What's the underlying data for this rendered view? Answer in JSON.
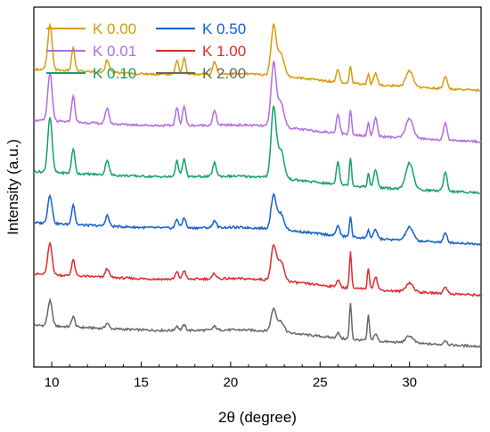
{
  "chart_data": {
    "type": "line",
    "title": "",
    "xlabel": "2θ (degree)",
    "ylabel": "Intensity (a.u.)",
    "xlim": [
      9,
      34
    ],
    "xticks": [
      "10",
      "15",
      "20",
      "25",
      "30"
    ],
    "y_ticks_labeled": false,
    "grid": false,
    "legend": {
      "placement": "top-left",
      "columns": 2,
      "entries": [
        "K 0.00",
        "K 0.50",
        "K 0.01",
        "K 1.00",
        "K 0.10",
        "K 2.00"
      ]
    },
    "peak_positions_2theta": [
      9.9,
      11.2,
      13.1,
      17.0,
      17.4,
      19.1,
      22.4,
      22.8,
      26.0,
      26.7,
      27.7,
      28.1,
      30.0,
      32.0
    ],
    "series": [
      {
        "name": "K 0.00",
        "color": "#d99a08",
        "offset": 5,
        "baseline": [
          [
            9,
            0.33
          ],
          [
            34,
            0.09
          ]
        ],
        "peak_heights": [
          0.5,
          0.26,
          0.15,
          0.16,
          0.18,
          0.14,
          0.55,
          0.26,
          0.15,
          0.2,
          0.12,
          0.14,
          0.18,
          0.14
        ]
      },
      {
        "name": "K 0.01",
        "color": "#b36ae2",
        "offset": 4,
        "baseline": [
          [
            9,
            0.33
          ],
          [
            34,
            0.09
          ]
        ],
        "peak_heights": [
          0.54,
          0.3,
          0.18,
          0.2,
          0.22,
          0.16,
          0.7,
          0.28,
          0.22,
          0.28,
          0.15,
          0.2,
          0.22,
          0.18
        ]
      },
      {
        "name": "K 0.10",
        "color": "#12a06a",
        "offset": 3,
        "baseline": [
          [
            9,
            0.33
          ],
          [
            34,
            0.09
          ]
        ],
        "peak_heights": [
          0.62,
          0.28,
          0.17,
          0.18,
          0.2,
          0.15,
          0.78,
          0.32,
          0.26,
          0.32,
          0.15,
          0.2,
          0.3,
          0.22
        ]
      },
      {
        "name": "K 0.50",
        "color": "#1160d0",
        "offset": 2,
        "baseline": [
          [
            9,
            0.33
          ],
          [
            34,
            0.09
          ]
        ],
        "peak_heights": [
          0.32,
          0.23,
          0.12,
          0.1,
          0.12,
          0.08,
          0.38,
          0.18,
          0.12,
          0.23,
          0.1,
          0.1,
          0.15,
          0.1
        ]
      },
      {
        "name": "K 1.00",
        "color": "#e02a2a",
        "offset": 1,
        "baseline": [
          [
            9,
            0.33
          ],
          [
            34,
            0.09
          ]
        ],
        "peak_heights": [
          0.35,
          0.18,
          0.1,
          0.08,
          0.1,
          0.06,
          0.38,
          0.22,
          0.08,
          0.4,
          0.24,
          0.15,
          0.1,
          0.08
        ]
      },
      {
        "name": "K 2.00",
        "color": "#666666",
        "offset": 0,
        "baseline": [
          [
            9,
            0.33
          ],
          [
            34,
            0.09
          ]
        ],
        "peak_heights": [
          0.28,
          0.12,
          0.06,
          0.05,
          0.06,
          0.04,
          0.25,
          0.12,
          0.06,
          0.4,
          0.28,
          0.08,
          0.08,
          0.05
        ]
      }
    ]
  }
}
